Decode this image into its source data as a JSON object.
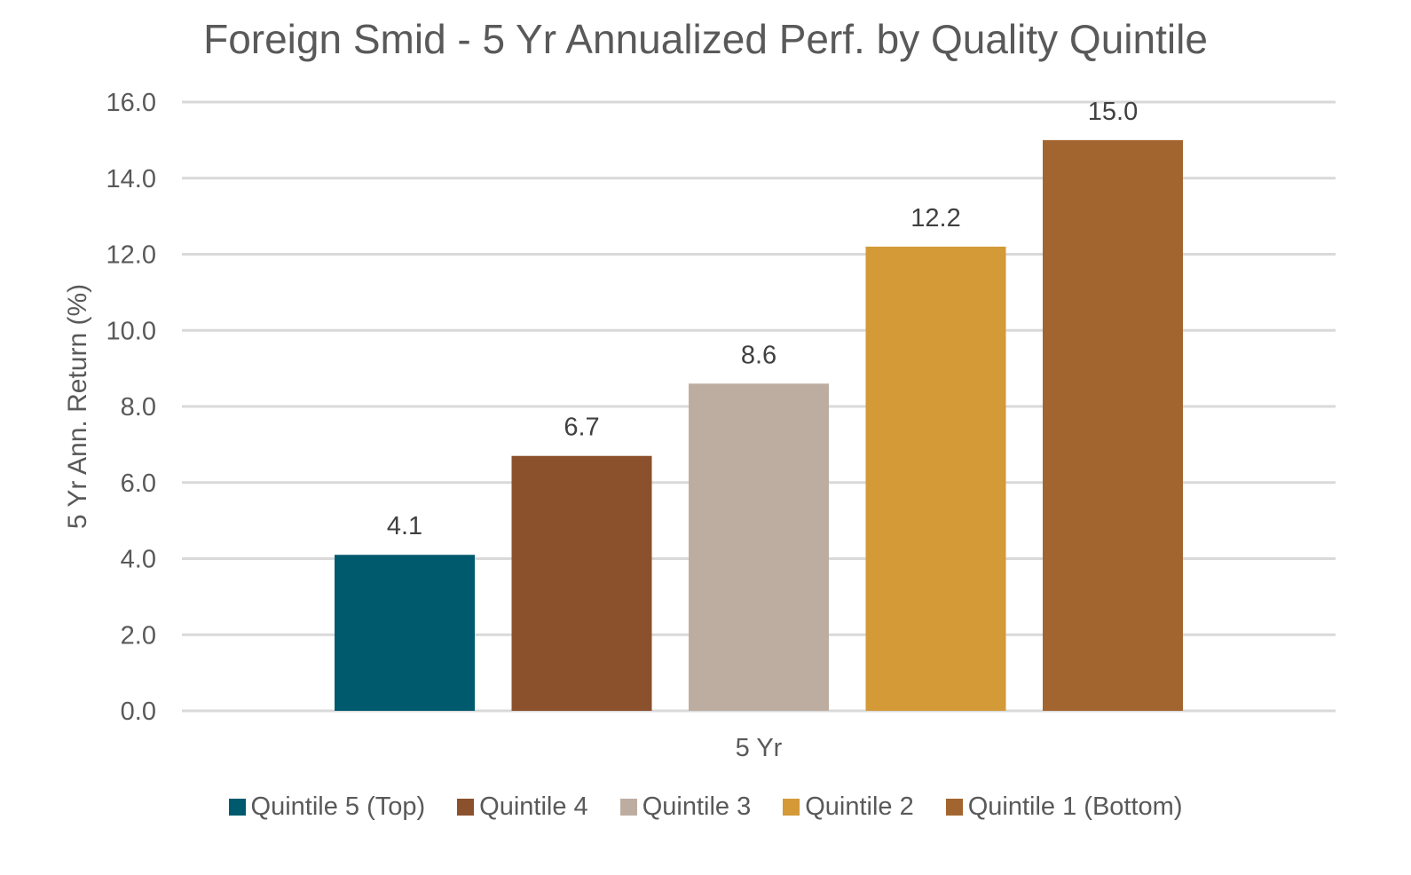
{
  "chart_data": {
    "type": "bar",
    "title": "Foreign Smid - 5 Yr Annualized Perf. by Quality Quintile",
    "xlabel": "",
    "ylabel": "5 Yr Ann. Return (%)",
    "ylim": [
      0,
      16
    ],
    "yticks": [
      "0.0",
      "2.0",
      "4.0",
      "6.0",
      "8.0",
      "10.0",
      "12.0",
      "14.0",
      "16.0"
    ],
    "categories": [
      "5 Yr"
    ],
    "grid": true,
    "legend_position": "bottom",
    "series": [
      {
        "name": "Quintile 5 (Top)",
        "values": [
          4.1
        ],
        "label": "4.1",
        "color": "#005A6E"
      },
      {
        "name": "Quintile 4",
        "values": [
          6.7
        ],
        "label": "6.7",
        "color": "#8B502C"
      },
      {
        "name": "Quintile 3",
        "values": [
          8.6
        ],
        "label": "8.6",
        "color": "#BDADA1"
      },
      {
        "name": "Quintile 2",
        "values": [
          12.2
        ],
        "label": "12.2",
        "color": "#D39A37"
      },
      {
        "name": "Quintile 1 (Bottom)",
        "values": [
          15.0
        ],
        "label": "15.0",
        "color": "#A3652F"
      }
    ]
  }
}
